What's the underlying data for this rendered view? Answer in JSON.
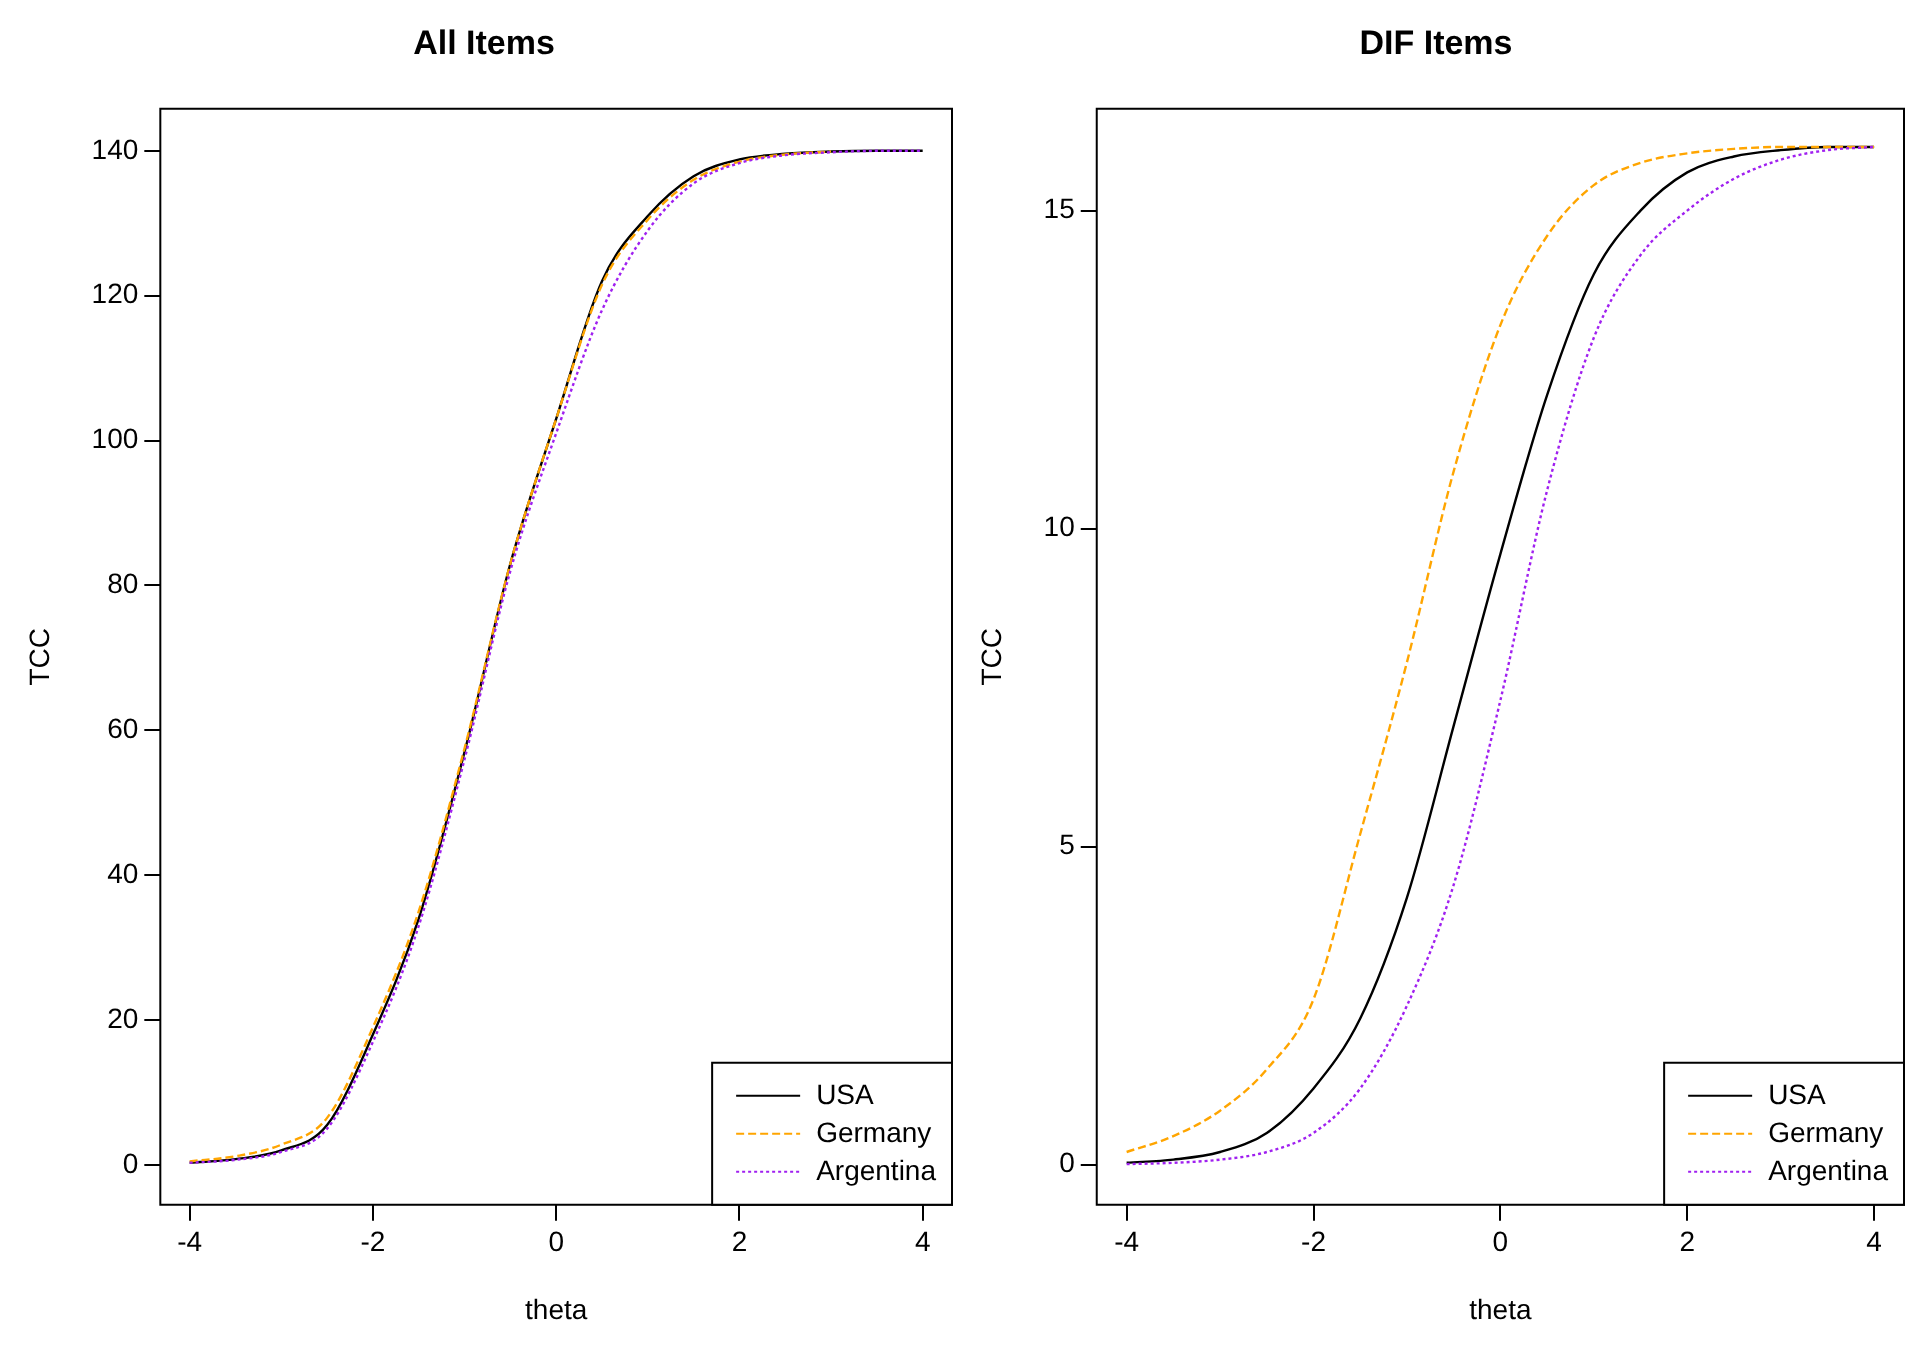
{
  "chart_data": [
    {
      "type": "line",
      "title": "All Items",
      "xlabel": "theta",
      "ylabel": "TCC",
      "x": [
        -4,
        -3.5,
        -3,
        -2.5,
        -2,
        -1.5,
        -1,
        -0.5,
        0,
        0.5,
        1,
        1.5,
        2,
        2.5,
        3,
        3.5,
        4
      ],
      "xlim": [
        -4.32,
        4.32
      ],
      "xticks": [
        -4,
        -2,
        0,
        2,
        4
      ],
      "ylim": [
        -5.5,
        145.8
      ],
      "yticks": [
        0,
        20,
        40,
        60,
        80,
        100,
        120,
        140
      ],
      "grid": false,
      "legend": "bottom right",
      "series": [
        {
          "name": "USA",
          "color": "#000000",
          "line_style": "solid",
          "values": [
            0.3,
            0.8,
            2,
            5.5,
            18,
            34,
            57,
            83,
            103,
            122,
            131,
            136.5,
            138.8,
            139.6,
            139.9,
            140,
            140
          ]
        },
        {
          "name": "Germany",
          "color": "#ffa500",
          "line_style": "dashed",
          "values": [
            0.5,
            1.2,
            2.8,
            6.5,
            19,
            35,
            57.5,
            83,
            103,
            121.5,
            130.5,
            136,
            138.5,
            139.5,
            139.9,
            null,
            null
          ]
        },
        {
          "name": "Argentina",
          "color": "#a020f0",
          "line_style": "dotted",
          "values": [
            0.3,
            0.7,
            1.8,
            5,
            17,
            33,
            56,
            82,
            101,
            118,
            129,
            135.5,
            138.3,
            139.4,
            139.8,
            140,
            140
          ]
        }
      ]
    },
    {
      "type": "line",
      "title": "DIF Items",
      "xlabel": "theta",
      "ylabel": "TCC",
      "x": [
        -4,
        -3.5,
        -3,
        -2.5,
        -2,
        -1.5,
        -1,
        -0.5,
        0,
        0.5,
        1,
        1.5,
        2,
        2.5,
        3,
        3.5,
        4
      ],
      "xlim": [
        -4.32,
        4.32
      ],
      "xticks": [
        -4,
        -2,
        0,
        2,
        4
      ],
      "ylim": [
        -0.63,
        16.6
      ],
      "yticks": [
        0,
        5,
        10,
        15
      ],
      "grid": false,
      "legend": "bottom right",
      "series": [
        {
          "name": "USA",
          "color": "#000000",
          "line_style": "solid",
          "values": [
            0.03,
            0.08,
            0.2,
            0.5,
            1.2,
            2.3,
            4.2,
            6.9,
            9.6,
            12.1,
            14,
            15,
            15.6,
            15.85,
            15.95,
            16,
            16
          ]
        },
        {
          "name": "Germany",
          "color": "#ffa500",
          "line_style": "dashed",
          "values": [
            0.2,
            0.45,
            0.85,
            1.5,
            2.6,
            5.2,
            7.9,
            10.9,
            13.2,
            14.6,
            15.4,
            15.75,
            15.9,
            15.97,
            16,
            16,
            16
          ]
        },
        {
          "name": "Argentina",
          "color": "#a020f0",
          "line_style": "dotted",
          "values": [
            0.01,
            0.03,
            0.08,
            0.2,
            0.5,
            1.2,
            2.5,
            4.4,
            7.3,
            10.6,
            13,
            14.3,
            15,
            15.5,
            15.8,
            15.95,
            16
          ]
        }
      ]
    }
  ]
}
